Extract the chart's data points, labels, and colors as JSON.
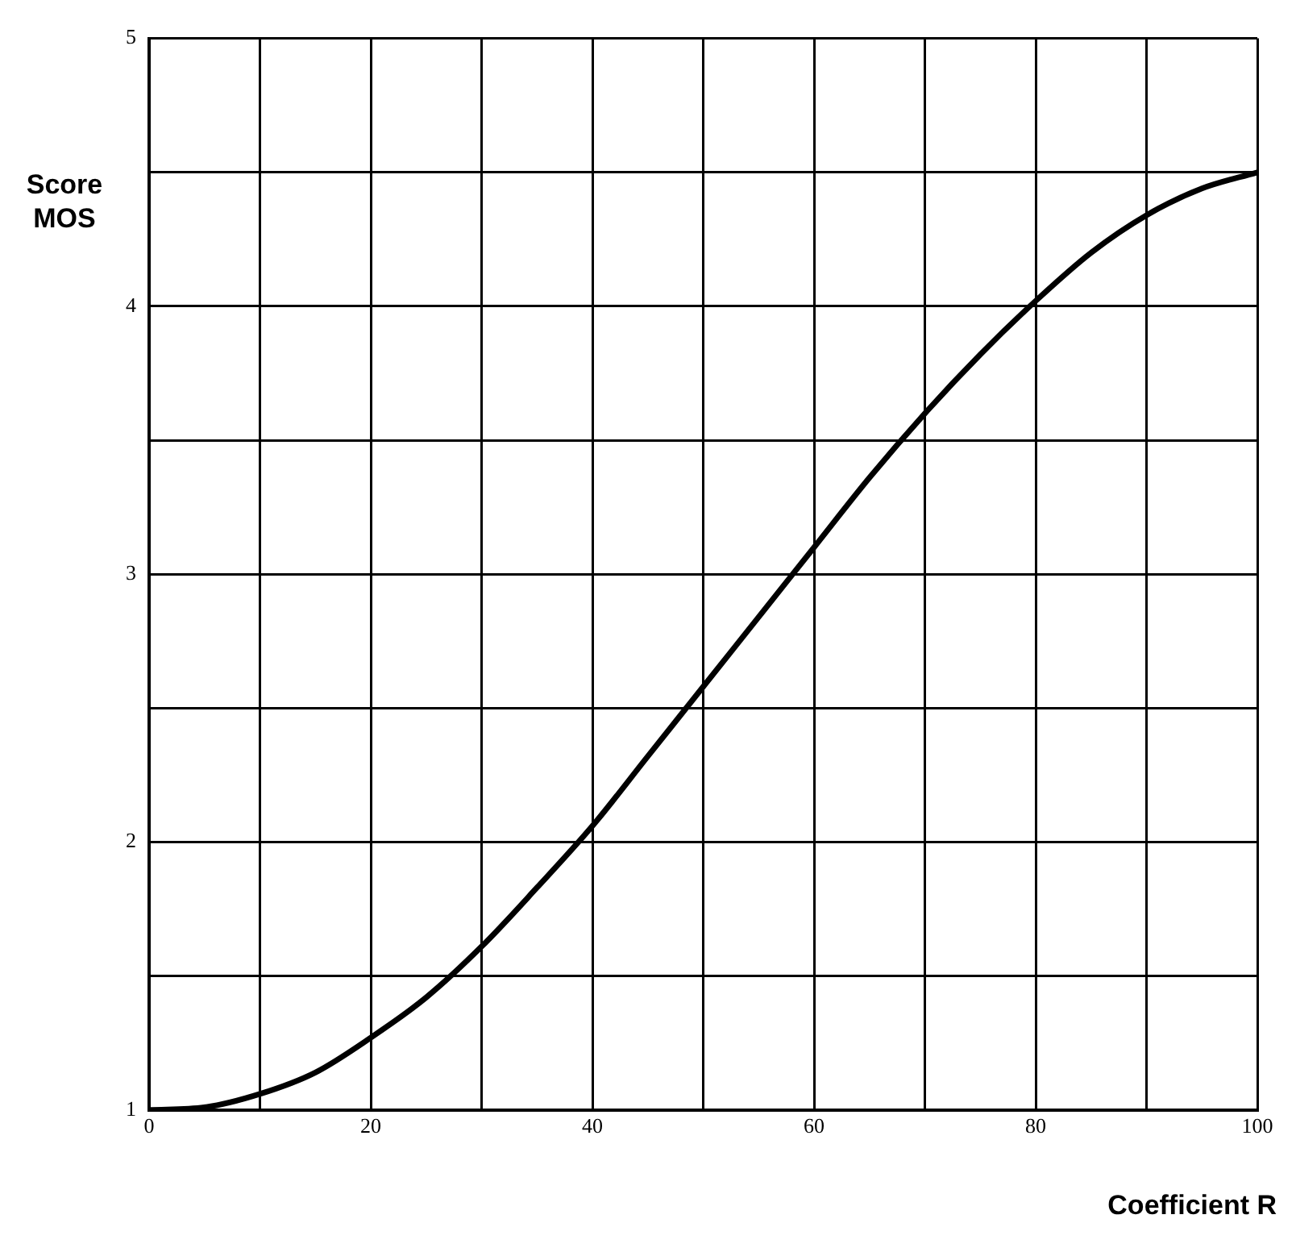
{
  "chart_data": {
    "type": "line",
    "xlabel": "Coefficient R",
    "ylabel": "Score MOS",
    "x": [
      0,
      5,
      10,
      15,
      20,
      25,
      30,
      35,
      40,
      45,
      50,
      55,
      60,
      65,
      70,
      75,
      80,
      85,
      90,
      95,
      100
    ],
    "series": [
      {
        "color": "#000000",
        "values": [
          1.0,
          1.01,
          1.06,
          1.14,
          1.27,
          1.42,
          1.61,
          1.83,
          2.06,
          2.32,
          2.58,
          2.84,
          3.1,
          3.36,
          3.6,
          3.82,
          4.02,
          4.2,
          4.34,
          4.44,
          4.5
        ]
      }
    ],
    "xlim": [
      0,
      100
    ],
    "ylim": [
      1,
      5
    ],
    "xticks": [
      0,
      {
        "value": 10,
        "label": null
      },
      20,
      {
        "value": 30,
        "label": null
      },
      40,
      {
        "value": 50,
        "label": null
      },
      60,
      {
        "value": 70,
        "label": null
      },
      80,
      {
        "value": 90,
        "label": null
      },
      100
    ],
    "yticks": [
      1,
      {
        "value": 1.5,
        "label": null
      },
      2,
      {
        "value": 2.5,
        "label": null
      },
      3,
      {
        "value": 3.5,
        "label": null
      },
      4,
      {
        "value": 4.5,
        "label": null
      },
      5
    ],
    "grid": true,
    "legend": false,
    "marker": "none",
    "line_style": "solid"
  }
}
